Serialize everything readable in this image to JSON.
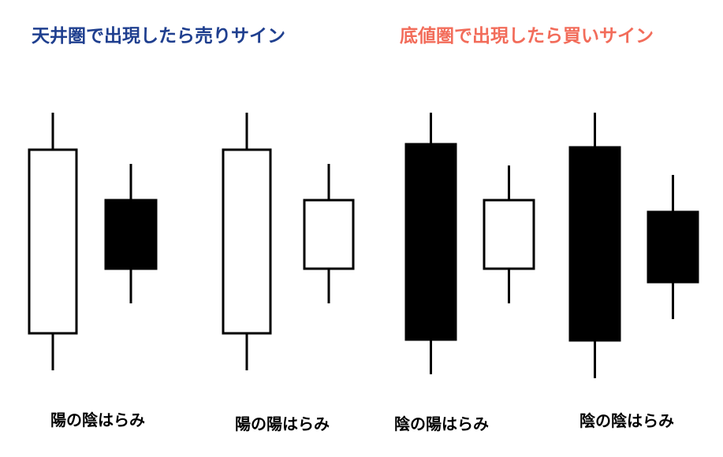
{
  "headings": {
    "sell": {
      "text": "天井圏で出現したら売りサイン",
      "color": "#1f3f8f"
    },
    "buy": {
      "text": "底値圏で出現したら買いサイン",
      "color": "#f26c5a"
    }
  },
  "patterns": [
    {
      "label": "陽の陰はらみ",
      "candles": [
        {
          "type": "bullish",
          "role": "mother"
        },
        {
          "type": "bearish",
          "role": "inside"
        }
      ]
    },
    {
      "label": "陽の陽はらみ",
      "candles": [
        {
          "type": "bullish",
          "role": "mother"
        },
        {
          "type": "bullish",
          "role": "inside"
        }
      ]
    },
    {
      "label": "陰の陽はらみ",
      "candles": [
        {
          "type": "bearish",
          "role": "mother"
        },
        {
          "type": "bullish",
          "role": "inside"
        }
      ]
    },
    {
      "label": "陰の陰はらみ",
      "candles": [
        {
          "type": "bearish",
          "role": "mother"
        },
        {
          "type": "bearish",
          "role": "inside"
        }
      ]
    }
  ],
  "colors": {
    "bullish_fill": "#ffffff",
    "bearish_fill": "#000000",
    "outline": "#000000"
  }
}
